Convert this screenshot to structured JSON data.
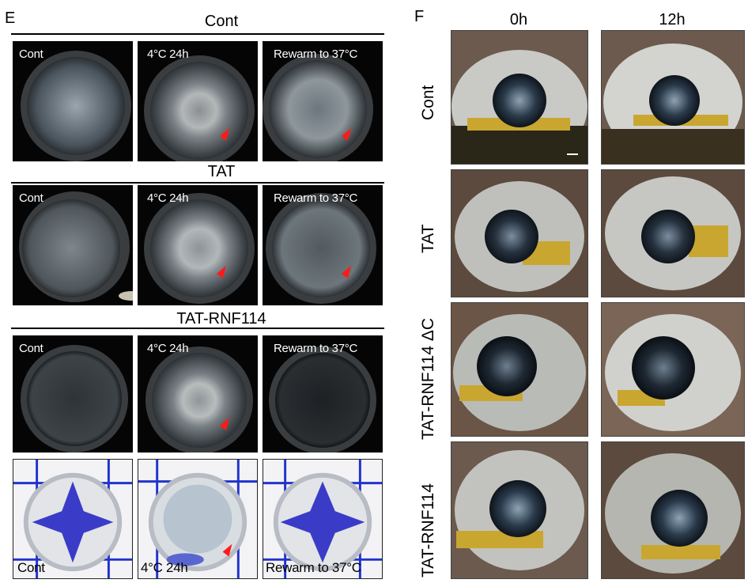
{
  "panel_e": {
    "letter": "E",
    "groups": [
      {
        "title": "Cont",
        "labels": [
          "Cont",
          "4°C 24h",
          "Rewarm to 37°C"
        ]
      },
      {
        "title": "TAT",
        "labels": [
          "Cont",
          "4°C 24h",
          "Rewarm to 37°C"
        ]
      },
      {
        "title": "TAT-RNF114",
        "labels": [
          "Cont",
          "4°C 24h",
          "Rewarm to 37°C"
        ]
      }
    ],
    "stained_labels": [
      "Cont",
      "4°C 24h",
      "Rewarm to 37°C"
    ]
  },
  "panel_f": {
    "letter": "F",
    "columns": [
      "0h",
      "12h"
    ],
    "rows": [
      "Cont",
      "TAT",
      "TAT-RNF114 ΔC",
      "TAT-RNF114"
    ]
  },
  "colors": {
    "arrow": "#ff1a1a",
    "stain_blue": "#3a3cc8",
    "gold": "#c9a630"
  }
}
